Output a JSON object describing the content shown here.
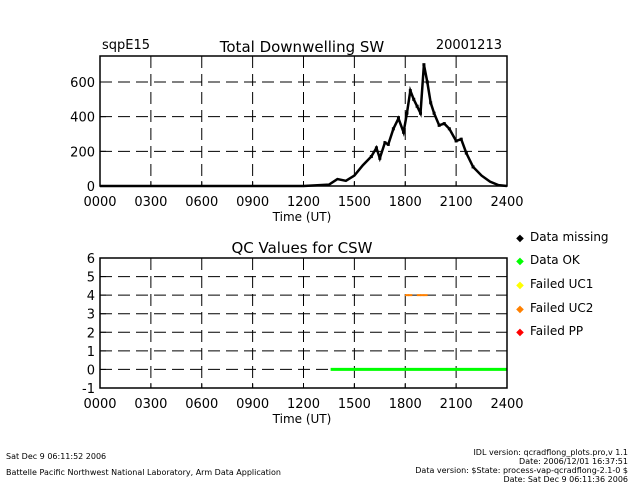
{
  "site": "sqpE15",
  "date": "20001213",
  "footer": {
    "left1": "Sat Dec  9 06:11:52 2006",
    "left2": "Battelle Pacific Northwest National Laboratory, Arm Data Application",
    "right": [
      "IDL version: qcradflong_plots.pro,v 1.1",
      "Date: 2006/12/01 16:37:51",
      "Data version: $State: process-vap-qcradflong-2.1-0 $",
      "Date: Sat Dec  9 06:11:36 2006"
    ]
  },
  "colors": {
    "data": "#000000",
    "ok": "#00ff00",
    "failed_uc1": "#ffff00",
    "failed_uc2": "#ff8000",
    "failed_pp": "#ff0000"
  },
  "legend": [
    {
      "label": "Data missing",
      "color": "#000000"
    },
    {
      "label": "Data OK",
      "color": "#00ff00"
    },
    {
      "label": "Failed UC1",
      "color": "#ffff00"
    },
    {
      "label": "Failed UC2",
      "color": "#ff8000"
    },
    {
      "label": "Failed PP",
      "color": "#ff0000"
    }
  ],
  "chart_data": [
    {
      "type": "scatter",
      "title": "Total Downwelling SW",
      "xlabel": "Time (UT)",
      "ylabel": "",
      "xlim": [
        0,
        2400
      ],
      "ylim": [
        0,
        750
      ],
      "x_ticks": [
        "0000",
        "0300",
        "0600",
        "0900",
        "1200",
        "1500",
        "1800",
        "2100",
        "2400"
      ],
      "y_ticks": [
        0,
        200,
        400,
        600
      ],
      "grid": true,
      "series": [
        {
          "x": [
            0,
            200,
            400,
            600,
            800,
            1000,
            1200,
            1350,
            1400,
            1450,
            1500,
            1550,
            1600,
            1630,
            1650,
            1680,
            1700,
            1730,
            1760,
            1790,
            1810,
            1830,
            1850,
            1870,
            1890,
            1910,
            1930,
            1950,
            1970,
            2000,
            2030,
            2060,
            2100,
            2130,
            2160,
            2200,
            2250,
            2300,
            2350,
            2400
          ],
          "y": [
            0,
            0,
            0,
            0,
            0,
            0,
            0,
            8,
            40,
            30,
            60,
            120,
            170,
            220,
            160,
            250,
            240,
            330,
            390,
            310,
            420,
            550,
            500,
            460,
            420,
            700,
            600,
            480,
            420,
            350,
            360,
            330,
            260,
            270,
            190,
            110,
            60,
            25,
            5,
            0
          ]
        }
      ]
    },
    {
      "type": "scatter",
      "title": "QC Values for CSW",
      "xlabel": "Time (UT)",
      "ylabel": "",
      "xlim": [
        0,
        2400
      ],
      "ylim": [
        -1,
        6
      ],
      "x_ticks": [
        "0000",
        "0300",
        "0600",
        "0900",
        "1200",
        "1500",
        "1800",
        "2100",
        "2400"
      ],
      "y_ticks": [
        -1,
        0,
        1,
        2,
        3,
        4,
        5,
        6
      ],
      "grid": true,
      "series": [
        {
          "name": "Data OK",
          "x_range": [
            1360,
            2400
          ],
          "y": 0
        },
        {
          "name": "Failed UC2",
          "x": [
            1810,
            1830,
            1880,
            1900,
            1920
          ],
          "y": [
            4,
            4,
            4,
            4,
            4
          ]
        }
      ]
    }
  ]
}
